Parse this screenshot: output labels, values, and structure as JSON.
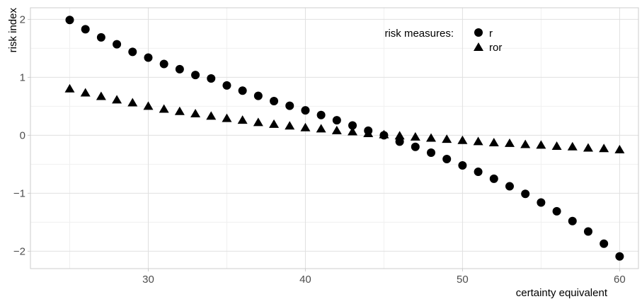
{
  "chart_data": {
    "type": "scatter",
    "xlabel": "certainty equivalent",
    "ylabel": "risk index",
    "xlim": [
      22.5,
      61.2
    ],
    "ylim": [
      -2.3,
      2.2
    ],
    "x_ticks": [
      30,
      40,
      50,
      60
    ],
    "x_tick_labels": [
      "30",
      "40",
      "50",
      "60"
    ],
    "y_ticks": [
      -2,
      -1,
      0,
      1,
      2
    ],
    "y_tick_labels": [
      "−2",
      "−1",
      "0",
      "1",
      "2"
    ],
    "grid": true,
    "legend": {
      "title": "risk measures:",
      "placement": "top-right",
      "entries": [
        "r",
        "ror"
      ]
    },
    "series": [
      {
        "name": "r",
        "marker": "circle",
        "color": "#000000",
        "points": [
          [
            25,
            1.99
          ],
          [
            26,
            1.83
          ],
          [
            27,
            1.69
          ],
          [
            28,
            1.57
          ],
          [
            29,
            1.44
          ],
          [
            30,
            1.34
          ],
          [
            31,
            1.23
          ],
          [
            32,
            1.14
          ],
          [
            33,
            1.04
          ],
          [
            34,
            0.98
          ],
          [
            35,
            0.86
          ],
          [
            36,
            0.77
          ],
          [
            37,
            0.68
          ],
          [
            38,
            0.59
          ],
          [
            39,
            0.51
          ],
          [
            40,
            0.43
          ],
          [
            41,
            0.35
          ],
          [
            42,
            0.26
          ],
          [
            43,
            0.17
          ],
          [
            44,
            0.08
          ],
          [
            45,
            0.0
          ],
          [
            46,
            -0.11
          ],
          [
            47,
            -0.2
          ],
          [
            48,
            -0.3
          ],
          [
            49,
            -0.41
          ],
          [
            50,
            -0.52
          ],
          [
            51,
            -0.63
          ],
          [
            52,
            -0.75
          ],
          [
            53,
            -0.88
          ],
          [
            54,
            -1.01
          ],
          [
            55,
            -1.16
          ],
          [
            56,
            -1.31
          ],
          [
            57,
            -1.48
          ],
          [
            58,
            -1.66
          ],
          [
            59,
            -1.87
          ],
          [
            60,
            -2.09
          ]
        ]
      },
      {
        "name": "ror",
        "marker": "triangle",
        "color": "#000000",
        "points": [
          [
            25,
            0.8
          ],
          [
            26,
            0.73
          ],
          [
            27,
            0.67
          ],
          [
            28,
            0.61
          ],
          [
            29,
            0.56
          ],
          [
            30,
            0.5
          ],
          [
            31,
            0.45
          ],
          [
            32,
            0.41
          ],
          [
            33,
            0.37
          ],
          [
            34,
            0.33
          ],
          [
            35,
            0.29
          ],
          [
            36,
            0.26
          ],
          [
            37,
            0.22
          ],
          [
            38,
            0.19
          ],
          [
            39,
            0.16
          ],
          [
            40,
            0.13
          ],
          [
            41,
            0.11
          ],
          [
            42,
            0.08
          ],
          [
            43,
            0.06
          ],
          [
            44,
            0.03
          ],
          [
            45,
            0.01
          ],
          [
            46,
            -0.01
          ],
          [
            47,
            -0.03
          ],
          [
            48,
            -0.05
          ],
          [
            49,
            -0.07
          ],
          [
            50,
            -0.09
          ],
          [
            51,
            -0.11
          ],
          [
            52,
            -0.13
          ],
          [
            53,
            -0.14
          ],
          [
            54,
            -0.16
          ],
          [
            55,
            -0.17
          ],
          [
            56,
            -0.19
          ],
          [
            57,
            -0.2
          ],
          [
            58,
            -0.22
          ],
          [
            59,
            -0.23
          ],
          [
            60,
            -0.25
          ]
        ]
      }
    ]
  }
}
